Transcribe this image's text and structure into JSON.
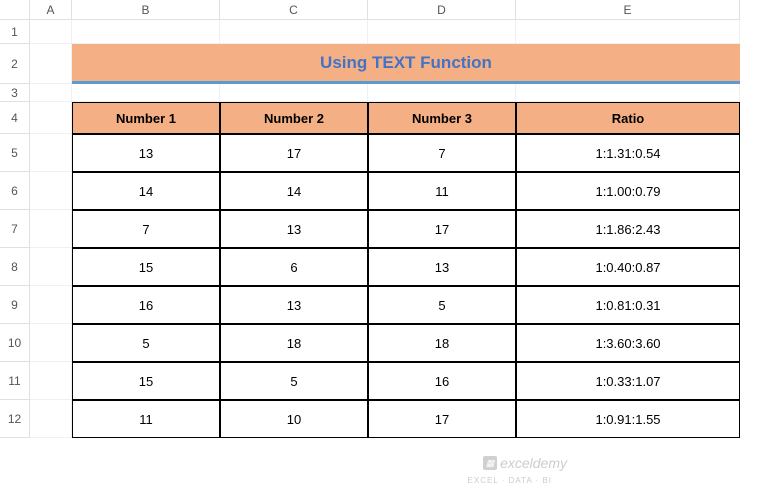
{
  "columns": [
    "A",
    "B",
    "C",
    "D",
    "E"
  ],
  "rows": [
    "1",
    "2",
    "3",
    "4",
    "5",
    "6",
    "7",
    "8",
    "9",
    "10",
    "11",
    "12"
  ],
  "title": "Using TEXT Function",
  "headers": {
    "col1": "Number 1",
    "col2": "Number 2",
    "col3": "Number 3",
    "col4": "Ratio"
  },
  "data": [
    {
      "n1": "13",
      "n2": "17",
      "n3": "7",
      "ratio": "1:1.31:0.54"
    },
    {
      "n1": "14",
      "n2": "14",
      "n3": "11",
      "ratio": "1:1.00:0.79"
    },
    {
      "n1": "7",
      "n2": "13",
      "n3": "17",
      "ratio": "1:1.86:2.43"
    },
    {
      "n1": "15",
      "n2": "6",
      "n3": "13",
      "ratio": "1:0.40:0.87"
    },
    {
      "n1": "16",
      "n2": "13",
      "n3": "5",
      "ratio": "1:0.81:0.31"
    },
    {
      "n1": "5",
      "n2": "18",
      "n3": "18",
      "ratio": "1:3.60:3.60"
    },
    {
      "n1": "15",
      "n2": "5",
      "n3": "16",
      "ratio": "1:0.33:1.07"
    },
    {
      "n1": "11",
      "n2": "10",
      "n3": "17",
      "ratio": "1:0.91:1.55"
    }
  ],
  "watermark": {
    "text": "exceldemy",
    "subtext": "EXCEL · DATA · BI"
  },
  "colors": {
    "header_bg": "#f4b084",
    "title_underline": "#5b9bd5",
    "title_text": "#4472c4",
    "cell_border": "#000000",
    "grid_border": "#e0e0e0"
  }
}
